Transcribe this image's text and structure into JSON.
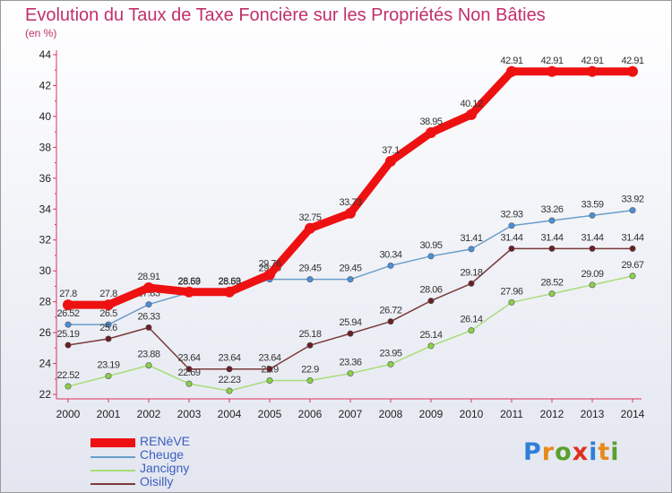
{
  "title": "Evolution du Taux de Taxe Foncière sur les Propriétés Non Bâties",
  "subtitle": "(en %)",
  "logo": {
    "letters": [
      "P",
      "r",
      "o",
      "x",
      "i",
      "t",
      "i"
    ],
    "colors": [
      "#2f7fd6",
      "#e88a1a",
      "#5aa02c",
      "#e0301e",
      "#2f7fd6",
      "#e88a1a",
      "#5aa02c"
    ]
  },
  "chart_data": {
    "type": "line",
    "title": "Evolution du Taux de Taxe Foncière sur les Propriétés Non Bâties",
    "ylabel": "(en %)",
    "x": [
      2000,
      2001,
      2002,
      2003,
      2004,
      2005,
      2006,
      2007,
      2008,
      2009,
      2010,
      2011,
      2012,
      2013,
      2014
    ],
    "ylim": [
      22,
      44
    ],
    "yticks": [
      22,
      24,
      26,
      28,
      30,
      32,
      34,
      36,
      38,
      40,
      42,
      44
    ],
    "grid": false,
    "legend_position": "bottom-left",
    "series": [
      {
        "name": "Cheuge",
        "color": "#6a9ecb",
        "marker": "#4a90d8",
        "values": [
          26.52,
          26.52,
          27.83,
          28.59,
          28.59,
          29.45,
          29.45,
          29.45,
          30.34,
          30.95,
          31.41,
          32.93,
          33.26,
          33.59,
          33.92
        ],
        "labels": [
          "26.52",
          "26.5",
          "27.83",
          "28.59",
          "28.59",
          "29.45",
          "29.45",
          "29.45",
          "30.34",
          "30.95",
          "31.41",
          "32.93",
          "33.26",
          "33.59",
          "33.92"
        ]
      },
      {
        "name": "Jancigny",
        "color": "#a8dc78",
        "marker": "#8cd04a",
        "values": [
          22.52,
          23.19,
          23.88,
          22.69,
          22.23,
          22.9,
          22.9,
          23.36,
          23.95,
          25.14,
          26.14,
          27.96,
          28.52,
          29.09,
          29.67
        ],
        "labels": [
          "22.52",
          "23.19",
          "23.88",
          "22.69",
          "22.23",
          "22.9",
          "22.9",
          "23.36",
          "23.95",
          "25.14",
          "26.14",
          "27.96",
          "28.52",
          "29.09",
          "29.67"
        ]
      },
      {
        "name": "Oisilly",
        "color": "#7a3a3a",
        "marker": "#6a1f24",
        "values": [
          25.19,
          25.6,
          26.33,
          23.64,
          23.64,
          23.64,
          25.18,
          25.94,
          26.72,
          28.06,
          29.18,
          31.44,
          31.44,
          31.44,
          31.44
        ],
        "labels": [
          "25.19",
          "25.6",
          "26.33",
          "23.64",
          "23.64",
          "23.64",
          "25.18",
          "25.94",
          "26.72",
          "28.06",
          "29.18",
          "31.44",
          "31.44",
          "31.44",
          "31.44"
        ]
      },
      {
        "name": "RENèVE",
        "color": "#ee1111",
        "marker": "#ee1111",
        "values": [
          27.8,
          27.8,
          28.91,
          28.63,
          28.63,
          29.76,
          32.75,
          33.73,
          37.1,
          38.95,
          40.12,
          42.91,
          42.91,
          42.91,
          42.91
        ],
        "labels": [
          "27.8",
          "27.8",
          "28.91",
          "28.63",
          "28.63",
          "29.76",
          "32.75",
          "33.73",
          "37.1",
          "38.95",
          "40.12",
          "42.91",
          "42.91",
          "42.91",
          "42.91"
        ]
      }
    ],
    "legend_order": [
      "RENèVE",
      "Cheuge",
      "Jancigny",
      "Oisilly"
    ]
  }
}
